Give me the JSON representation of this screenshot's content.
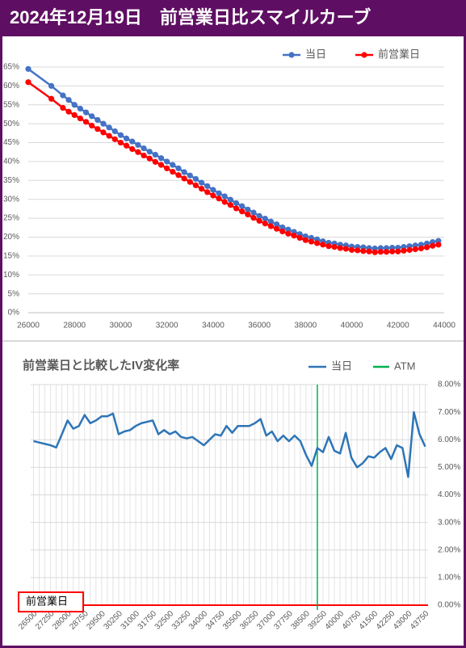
{
  "header": {
    "title": "2024年12月19日　前営業日比スマイルカーブ"
  },
  "chart_data": [
    {
      "type": "line",
      "x": [
        26000,
        27000,
        27500,
        27750,
        28000,
        28250,
        28500,
        28750,
        29000,
        29250,
        29500,
        29750,
        30000,
        30250,
        30500,
        30750,
        31000,
        31250,
        31500,
        31750,
        32000,
        32250,
        32500,
        32750,
        33000,
        33250,
        33500,
        33750,
        34000,
        34250,
        34500,
        34750,
        35000,
        35250,
        35500,
        35750,
        36000,
        36250,
        36500,
        36750,
        37000,
        37250,
        37500,
        37750,
        38000,
        38250,
        38500,
        38750,
        39000,
        39250,
        39500,
        39750,
        40000,
        40250,
        40500,
        40750,
        41000,
        41250,
        41500,
        41750,
        42000,
        42250,
        42500,
        42750,
        43000,
        43250,
        43500,
        43750
      ],
      "series": [
        {
          "name": "当日",
          "color": "#4472c4",
          "values": [
            64.5,
            60,
            57.5,
            56.3,
            55,
            54,
            53,
            52,
            51,
            50,
            49,
            48,
            47,
            46.1,
            45.3,
            44.4,
            43.5,
            42.6,
            41.8,
            40.9,
            40,
            39.1,
            38.2,
            37.2,
            36.3,
            35.4,
            34.4,
            33.5,
            32.5,
            31.6,
            30.8,
            29.9,
            29,
            28.2,
            27.3,
            26.5,
            25.6,
            24.9,
            24.1,
            23.4,
            22.6,
            22,
            21.4,
            20.8,
            20.2,
            19.8,
            19.4,
            18.9,
            18.5,
            18.3,
            18,
            17.8,
            17.5,
            17.4,
            17.3,
            17.1,
            17,
            17.1,
            17.1,
            17.2,
            17.2,
            17.4,
            17.6,
            17.8,
            18,
            18.3,
            18.7,
            19
          ]
        },
        {
          "name": "前営業日",
          "color": "#ff0000",
          "values": [
            61,
            56.6,
            54.2,
            53.2,
            52.3,
            51.4,
            50.5,
            49.5,
            48.6,
            47.7,
            46.8,
            45.9,
            45,
            44.2,
            43.3,
            42.5,
            41.6,
            40.8,
            39.9,
            39.1,
            38.2,
            37.3,
            36.4,
            35.5,
            34.6,
            33.7,
            32.8,
            31.9,
            31,
            30.2,
            29.3,
            28.5,
            27.6,
            26.8,
            26,
            25.1,
            24.3,
            23.6,
            22.9,
            22.2,
            21.5,
            20.9,
            20.4,
            19.8,
            19.2,
            18.8,
            18.4,
            18,
            17.6,
            17.4,
            17.1,
            16.9,
            16.6,
            16.5,
            16.3,
            16.2,
            16,
            16.1,
            16.1,
            16.2,
            16.2,
            16.4,
            16.6,
            16.8,
            17,
            17.3,
            17.7,
            18
          ]
        }
      ],
      "xlim": [
        26000,
        44000
      ],
      "xticks": [
        26000,
        28000,
        30000,
        32000,
        34000,
        36000,
        38000,
        40000,
        42000,
        44000
      ],
      "ylim": [
        0,
        65
      ],
      "yticks": [
        {
          "value": 0,
          "label": "0%"
        },
        {
          "value": 5,
          "label": "5%"
        },
        {
          "value": 10,
          "label": "10%"
        },
        {
          "value": 15,
          "label": "15%"
        },
        {
          "value": 20,
          "label": "20%"
        },
        {
          "value": 25,
          "label": "25%"
        },
        {
          "value": 30,
          "label": "30%"
        },
        {
          "value": 35,
          "label": "35%"
        },
        {
          "value": 40,
          "label": "40%"
        },
        {
          "value": 45,
          "label": "45%"
        },
        {
          "value": 50,
          "label": "50%"
        },
        {
          "value": 55,
          "label": "55%"
        },
        {
          "value": 60,
          "label": "60%"
        },
        {
          "value": 65,
          "label": "65%"
        }
      ],
      "grid": true,
      "markers": true,
      "legend": "top-right"
    },
    {
      "type": "line",
      "title": "前営業日と比較したIV変化率",
      "x": [
        26500,
        26750,
        27000,
        27250,
        27500,
        27750,
        28000,
        28250,
        28500,
        28750,
        29000,
        29250,
        29500,
        29750,
        30000,
        30250,
        30500,
        30750,
        31000,
        31250,
        31500,
        31750,
        32000,
        32250,
        32500,
        32750,
        33000,
        33250,
        33500,
        33750,
        34000,
        34250,
        34500,
        34750,
        35000,
        35250,
        35500,
        35750,
        36000,
        36250,
        36500,
        36750,
        37000,
        37250,
        37500,
        37750,
        38000,
        38250,
        38500,
        38750,
        39000,
        39250,
        39500,
        39750,
        40000,
        40250,
        40500,
        40750,
        41000,
        41250,
        41500,
        41750,
        42000,
        42250,
        42500,
        42750,
        43000,
        43250,
        43500,
        43750
      ],
      "series": [
        {
          "name": "当日",
          "color": "#2e75b6",
          "axis": "y2",
          "values": [
            5.95,
            5.9,
            5.85,
            5.8,
            5.72,
            6.2,
            6.7,
            6.4,
            6.5,
            6.9,
            6.6,
            6.7,
            6.85,
            6.85,
            6.95,
            6.2,
            6.3,
            6.35,
            6.5,
            6.6,
            6.65,
            6.7,
            6.2,
            6.35,
            6.2,
            6.3,
            6.1,
            6.05,
            6.1,
            5.95,
            5.8,
            6,
            6.2,
            6.15,
            6.5,
            6.25,
            6.5,
            6.5,
            6.5,
            6.6,
            6.75,
            6.15,
            6.3,
            5.95,
            6.15,
            5.95,
            6.15,
            5.95,
            5.45,
            5.05,
            5.7,
            5.55,
            6.1,
            5.6,
            5.5,
            6.25,
            5.35,
            5,
            5.15,
            5.4,
            5.35,
            5.55,
            5.7,
            5.3,
            5.8,
            5.7,
            4.65,
            7,
            6.2,
            5.75
          ]
        }
      ],
      "atm": {
        "name": "ATM",
        "x": 39000,
        "color": "#00b050"
      },
      "baseline": {
        "label": "前営業日",
        "value": 0,
        "color": "#ff0000"
      },
      "xlim": [
        26375,
        43875
      ],
      "xticks": [
        26500,
        27250,
        28000,
        28750,
        29500,
        30250,
        31000,
        31750,
        32500,
        33250,
        34000,
        34750,
        35500,
        36250,
        37000,
        37750,
        38500,
        39250,
        40000,
        40750,
        41500,
        42250,
        43000,
        43750
      ],
      "xlabel_rotation": -45,
      "y2lim": [
        0,
        8
      ],
      "y2ticks": [
        {
          "value": 0,
          "label": "0.00%"
        },
        {
          "value": 1,
          "label": "1.00%"
        },
        {
          "value": 2,
          "label": "2.00%"
        },
        {
          "value": 3,
          "label": "3.00%"
        },
        {
          "value": 4,
          "label": "4.00%"
        },
        {
          "value": 5,
          "label": "5.00%"
        },
        {
          "value": 6,
          "label": "6.00%"
        },
        {
          "value": 7,
          "label": "7.00%"
        },
        {
          "value": 8,
          "label": "8.00%"
        }
      ],
      "grid": true,
      "x_grid": true,
      "legend": "top-right"
    }
  ]
}
